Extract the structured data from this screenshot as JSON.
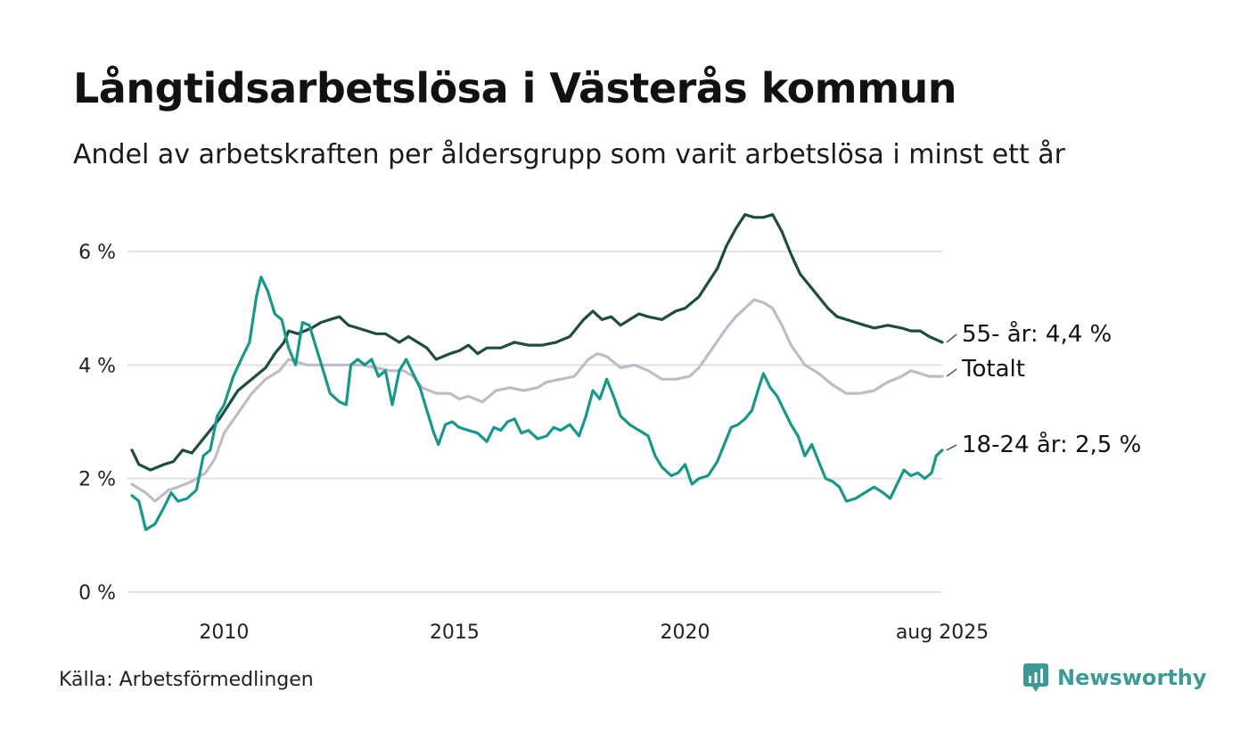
{
  "chart_data": {
    "type": "line",
    "title": "Långtidsarbetslösa i Västerås kommun",
    "subtitle": "Andel av arbetskraften per åldersgrupp som varit arbetslösa i minst ett år",
    "xlabel": "",
    "ylabel": "",
    "xlim": [
      2008.0,
      2025.58
    ],
    "ylim": [
      0,
      6.8
    ],
    "y_ticks": [
      {
        "value": 0,
        "label": "0 %"
      },
      {
        "value": 2,
        "label": "2 %"
      },
      {
        "value": 4,
        "label": "4 %"
      },
      {
        "value": 6,
        "label": "6 %"
      }
    ],
    "x_ticks": [
      {
        "value": 2010,
        "label": "2010"
      },
      {
        "value": 2015,
        "label": "2015"
      },
      {
        "value": 2020,
        "label": "2020"
      },
      {
        "value": 2025.58,
        "label": "aug 2025"
      }
    ],
    "grid": "horizontal",
    "legend": "end-of-line labels",
    "series": [
      {
        "name": "Totalt",
        "end_label": "Totalt",
        "color": "#bfbcc9",
        "points": [
          [
            2008.0,
            1.9
          ],
          [
            2008.3,
            1.75
          ],
          [
            2008.5,
            1.6
          ],
          [
            2008.8,
            1.8
          ],
          [
            2009.0,
            1.85
          ],
          [
            2009.3,
            1.95
          ],
          [
            2009.6,
            2.1
          ],
          [
            2009.8,
            2.35
          ],
          [
            2010.0,
            2.8
          ],
          [
            2010.3,
            3.15
          ],
          [
            2010.6,
            3.5
          ],
          [
            2010.9,
            3.75
          ],
          [
            2011.2,
            3.9
          ],
          [
            2011.4,
            4.1
          ],
          [
            2011.6,
            4.05
          ],
          [
            2011.8,
            4.0
          ],
          [
            2012.0,
            4.0
          ],
          [
            2012.3,
            4.0
          ],
          [
            2012.6,
            4.0
          ],
          [
            2013.0,
            4.0
          ],
          [
            2013.3,
            3.95
          ],
          [
            2013.6,
            3.9
          ],
          [
            2013.9,
            3.9
          ],
          [
            2014.1,
            3.8
          ],
          [
            2014.3,
            3.6
          ],
          [
            2014.6,
            3.5
          ],
          [
            2014.9,
            3.5
          ],
          [
            2015.1,
            3.4
          ],
          [
            2015.3,
            3.45
          ],
          [
            2015.6,
            3.35
          ],
          [
            2015.9,
            3.55
          ],
          [
            2016.2,
            3.6
          ],
          [
            2016.5,
            3.55
          ],
          [
            2016.8,
            3.6
          ],
          [
            2017.0,
            3.7
          ],
          [
            2017.3,
            3.75
          ],
          [
            2017.6,
            3.8
          ],
          [
            2017.9,
            4.1
          ],
          [
            2018.1,
            4.2
          ],
          [
            2018.3,
            4.15
          ],
          [
            2018.6,
            3.95
          ],
          [
            2018.9,
            4.0
          ],
          [
            2019.2,
            3.9
          ],
          [
            2019.5,
            3.75
          ],
          [
            2019.8,
            3.75
          ],
          [
            2020.1,
            3.8
          ],
          [
            2020.3,
            3.95
          ],
          [
            2020.6,
            4.3
          ],
          [
            2020.9,
            4.65
          ],
          [
            2021.1,
            4.85
          ],
          [
            2021.3,
            5.0
          ],
          [
            2021.5,
            5.15
          ],
          [
            2021.7,
            5.1
          ],
          [
            2021.9,
            5.0
          ],
          [
            2022.1,
            4.7
          ],
          [
            2022.3,
            4.35
          ],
          [
            2022.6,
            4.0
          ],
          [
            2022.9,
            3.85
          ],
          [
            2023.2,
            3.65
          ],
          [
            2023.5,
            3.5
          ],
          [
            2023.8,
            3.5
          ],
          [
            2024.1,
            3.55
          ],
          [
            2024.4,
            3.7
          ],
          [
            2024.7,
            3.8
          ],
          [
            2024.9,
            3.9
          ],
          [
            2025.1,
            3.85
          ],
          [
            2025.3,
            3.8
          ],
          [
            2025.58,
            3.8
          ]
        ]
      },
      {
        "name": "55- år",
        "end_label": "55- år: 4,4 %",
        "color": "#1f4b43",
        "points": [
          [
            2008.0,
            2.5
          ],
          [
            2008.15,
            2.25
          ],
          [
            2008.4,
            2.15
          ],
          [
            2008.7,
            2.25
          ],
          [
            2008.9,
            2.3
          ],
          [
            2009.1,
            2.5
          ],
          [
            2009.3,
            2.45
          ],
          [
            2009.6,
            2.75
          ],
          [
            2009.9,
            3.05
          ],
          [
            2010.1,
            3.3
          ],
          [
            2010.3,
            3.55
          ],
          [
            2010.6,
            3.75
          ],
          [
            2010.9,
            3.95
          ],
          [
            2011.1,
            4.2
          ],
          [
            2011.3,
            4.4
          ],
          [
            2011.4,
            4.6
          ],
          [
            2011.6,
            4.55
          ],
          [
            2011.9,
            4.65
          ],
          [
            2012.1,
            4.75
          ],
          [
            2012.3,
            4.8
          ],
          [
            2012.5,
            4.85
          ],
          [
            2012.7,
            4.7
          ],
          [
            2012.9,
            4.65
          ],
          [
            2013.1,
            4.6
          ],
          [
            2013.3,
            4.55
          ],
          [
            2013.5,
            4.55
          ],
          [
            2013.8,
            4.4
          ],
          [
            2014.0,
            4.5
          ],
          [
            2014.2,
            4.4
          ],
          [
            2014.4,
            4.3
          ],
          [
            2014.6,
            4.1
          ],
          [
            2014.9,
            4.2
          ],
          [
            2015.1,
            4.25
          ],
          [
            2015.3,
            4.35
          ],
          [
            2015.5,
            4.2
          ],
          [
            2015.7,
            4.3
          ],
          [
            2016.0,
            4.3
          ],
          [
            2016.3,
            4.4
          ],
          [
            2016.6,
            4.35
          ],
          [
            2016.9,
            4.35
          ],
          [
            2017.2,
            4.4
          ],
          [
            2017.5,
            4.5
          ],
          [
            2017.8,
            4.8
          ],
          [
            2018.0,
            4.95
          ],
          [
            2018.2,
            4.8
          ],
          [
            2018.4,
            4.85
          ],
          [
            2018.6,
            4.7
          ],
          [
            2018.8,
            4.8
          ],
          [
            2019.0,
            4.9
          ],
          [
            2019.2,
            4.85
          ],
          [
            2019.5,
            4.8
          ],
          [
            2019.8,
            4.95
          ],
          [
            2020.0,
            5.0
          ],
          [
            2020.3,
            5.2
          ],
          [
            2020.5,
            5.45
          ],
          [
            2020.7,
            5.7
          ],
          [
            2020.9,
            6.1
          ],
          [
            2021.1,
            6.4
          ],
          [
            2021.3,
            6.65
          ],
          [
            2021.5,
            6.6
          ],
          [
            2021.7,
            6.6
          ],
          [
            2021.9,
            6.65
          ],
          [
            2022.1,
            6.35
          ],
          [
            2022.3,
            5.95
          ],
          [
            2022.5,
            5.6
          ],
          [
            2022.7,
            5.4
          ],
          [
            2022.9,
            5.2
          ],
          [
            2023.1,
            5.0
          ],
          [
            2023.3,
            4.85
          ],
          [
            2023.5,
            4.8
          ],
          [
            2023.7,
            4.75
          ],
          [
            2023.9,
            4.7
          ],
          [
            2024.1,
            4.65
          ],
          [
            2024.4,
            4.7
          ],
          [
            2024.7,
            4.65
          ],
          [
            2024.9,
            4.6
          ],
          [
            2025.1,
            4.6
          ],
          [
            2025.3,
            4.5
          ],
          [
            2025.58,
            4.4
          ]
        ]
      },
      {
        "name": "18-24 år",
        "end_label": "18-24 år: 2,5 %",
        "color": "#19978a",
        "points": [
          [
            2008.0,
            1.7
          ],
          [
            2008.15,
            1.6
          ],
          [
            2008.3,
            1.1
          ],
          [
            2008.5,
            1.2
          ],
          [
            2008.7,
            1.5
          ],
          [
            2008.85,
            1.75
          ],
          [
            2009.0,
            1.6
          ],
          [
            2009.2,
            1.65
          ],
          [
            2009.4,
            1.8
          ],
          [
            2009.55,
            2.4
          ],
          [
            2009.7,
            2.5
          ],
          [
            2009.85,
            3.1
          ],
          [
            2010.0,
            3.3
          ],
          [
            2010.2,
            3.8
          ],
          [
            2010.4,
            4.15
          ],
          [
            2010.55,
            4.4
          ],
          [
            2010.7,
            5.2
          ],
          [
            2010.8,
            5.55
          ],
          [
            2010.95,
            5.3
          ],
          [
            2011.1,
            4.9
          ],
          [
            2011.25,
            4.8
          ],
          [
            2011.4,
            4.3
          ],
          [
            2011.55,
            4.0
          ],
          [
            2011.7,
            4.75
          ],
          [
            2011.85,
            4.7
          ],
          [
            2012.0,
            4.3
          ],
          [
            2012.15,
            3.9
          ],
          [
            2012.3,
            3.5
          ],
          [
            2012.5,
            3.35
          ],
          [
            2012.65,
            3.3
          ],
          [
            2012.75,
            4.0
          ],
          [
            2012.9,
            4.1
          ],
          [
            2013.05,
            4.0
          ],
          [
            2013.2,
            4.1
          ],
          [
            2013.35,
            3.8
          ],
          [
            2013.5,
            3.9
          ],
          [
            2013.65,
            3.3
          ],
          [
            2013.8,
            3.9
          ],
          [
            2013.95,
            4.1
          ],
          [
            2014.1,
            3.85
          ],
          [
            2014.25,
            3.6
          ],
          [
            2014.4,
            3.2
          ],
          [
            2014.55,
            2.8
          ],
          [
            2014.65,
            2.6
          ],
          [
            2014.8,
            2.95
          ],
          [
            2014.95,
            3.0
          ],
          [
            2015.1,
            2.9
          ],
          [
            2015.3,
            2.85
          ],
          [
            2015.5,
            2.8
          ],
          [
            2015.7,
            2.65
          ],
          [
            2015.85,
            2.9
          ],
          [
            2016.0,
            2.85
          ],
          [
            2016.15,
            3.0
          ],
          [
            2016.3,
            3.05
          ],
          [
            2016.45,
            2.8
          ],
          [
            2016.6,
            2.85
          ],
          [
            2016.8,
            2.7
          ],
          [
            2017.0,
            2.75
          ],
          [
            2017.15,
            2.9
          ],
          [
            2017.3,
            2.85
          ],
          [
            2017.5,
            2.95
          ],
          [
            2017.7,
            2.75
          ],
          [
            2017.85,
            3.1
          ],
          [
            2018.0,
            3.55
          ],
          [
            2018.15,
            3.4
          ],
          [
            2018.3,
            3.75
          ],
          [
            2018.45,
            3.45
          ],
          [
            2018.6,
            3.1
          ],
          [
            2018.8,
            2.95
          ],
          [
            2019.0,
            2.85
          ],
          [
            2019.2,
            2.75
          ],
          [
            2019.35,
            2.4
          ],
          [
            2019.5,
            2.2
          ],
          [
            2019.7,
            2.05
          ],
          [
            2019.85,
            2.1
          ],
          [
            2020.0,
            2.25
          ],
          [
            2020.15,
            1.9
          ],
          [
            2020.3,
            2.0
          ],
          [
            2020.5,
            2.05
          ],
          [
            2020.7,
            2.3
          ],
          [
            2020.85,
            2.6
          ],
          [
            2021.0,
            2.9
          ],
          [
            2021.15,
            2.95
          ],
          [
            2021.3,
            3.05
          ],
          [
            2021.45,
            3.2
          ],
          [
            2021.6,
            3.6
          ],
          [
            2021.7,
            3.85
          ],
          [
            2021.85,
            3.6
          ],
          [
            2022.0,
            3.45
          ],
          [
            2022.15,
            3.2
          ],
          [
            2022.3,
            2.95
          ],
          [
            2022.45,
            2.75
          ],
          [
            2022.6,
            2.4
          ],
          [
            2022.75,
            2.6
          ],
          [
            2022.9,
            2.3
          ],
          [
            2023.05,
            2.0
          ],
          [
            2023.2,
            1.95
          ],
          [
            2023.35,
            1.85
          ],
          [
            2023.5,
            1.6
          ],
          [
            2023.7,
            1.65
          ],
          [
            2023.9,
            1.75
          ],
          [
            2024.1,
            1.85
          ],
          [
            2024.3,
            1.75
          ],
          [
            2024.45,
            1.65
          ],
          [
            2024.6,
            1.9
          ],
          [
            2024.75,
            2.15
          ],
          [
            2024.9,
            2.05
          ],
          [
            2025.05,
            2.1
          ],
          [
            2025.2,
            2.0
          ],
          [
            2025.35,
            2.1
          ],
          [
            2025.45,
            2.4
          ],
          [
            2025.58,
            2.5
          ]
        ]
      }
    ]
  },
  "source": "Källa: Arbetsförmedlingen",
  "brand": {
    "name": "Newsworthy",
    "icon": "newsworthy-logo-icon",
    "color": "#3d9a94"
  },
  "colors": {
    "grid": "#e2e2e2",
    "text": "#111111",
    "leader": "#555555"
  }
}
